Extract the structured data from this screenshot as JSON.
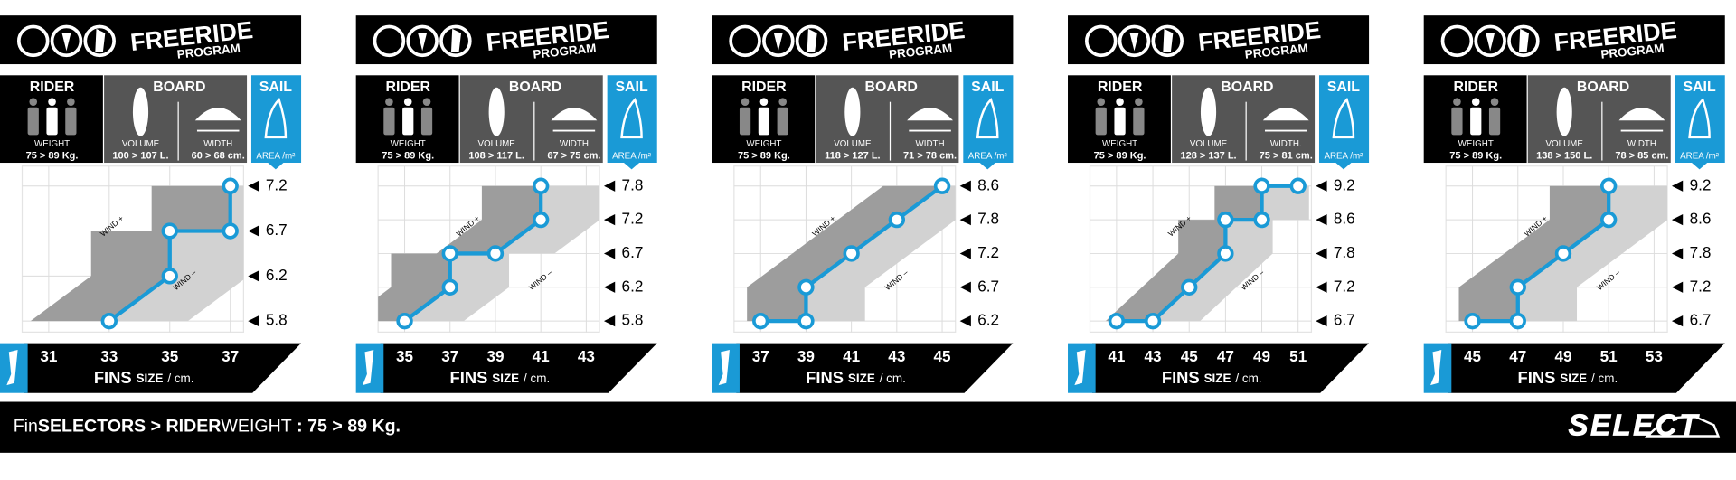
{
  "chart_data": [
    {
      "type": "line",
      "header": {
        "title": "FREERIDE",
        "subtitle": "PROGRAM"
      },
      "rider": {
        "label": "RIDER",
        "weight_label": "WEIGHT",
        "weight": "75 > 89 Kg."
      },
      "board": {
        "label": "BOARD",
        "volume_label": "VOLUME",
        "volume": "100 > 107 L.",
        "width_label": "WIDTH",
        "width": "60 > 68 cm."
      },
      "sail": {
        "label": "SAIL",
        "area_label": "AREA /m²"
      },
      "wind_plus": "WIND +",
      "wind_minus": "WIND –",
      "fins": {
        "label": "FINS",
        "size": "SIZE",
        "unit": "/ cm."
      },
      "x": [
        33,
        35,
        35,
        37,
        37
      ],
      "values": [
        5.8,
        6.2,
        6.7,
        6.7,
        7.2
      ],
      "color": "#1a9ad6",
      "xlim": [
        31,
        37
      ],
      "xticks": [
        31,
        33,
        35,
        37
      ],
      "yticks": [
        5.8,
        6.2,
        6.7,
        7.2
      ],
      "grid": true
    },
    {
      "type": "line",
      "header": {
        "title": "FREERIDE",
        "subtitle": "PROGRAM"
      },
      "rider": {
        "label": "RIDER",
        "weight_label": "WEIGHT",
        "weight": "75 > 89 Kg."
      },
      "board": {
        "label": "BOARD",
        "volume_label": "VOLUME",
        "volume": "108 > 117 L.",
        "width_label": "WIDTH",
        "width": "67 > 75 cm."
      },
      "sail": {
        "label": "SAIL",
        "area_label": "AREA /m²"
      },
      "wind_plus": "WIND +",
      "wind_minus": "WIND –",
      "fins": {
        "label": "FINS",
        "size": "SIZE",
        "unit": "/ cm."
      },
      "x": [
        35,
        37,
        37,
        39,
        41,
        41
      ],
      "values": [
        5.8,
        6.2,
        6.7,
        6.7,
        7.2,
        7.8
      ],
      "color": "#1a9ad6",
      "xlim": [
        35,
        43
      ],
      "xticks": [
        35,
        37,
        39,
        41,
        43
      ],
      "yticks": [
        5.8,
        6.2,
        6.7,
        7.2,
        7.8
      ],
      "grid": true
    },
    {
      "type": "line",
      "header": {
        "title": "FREERIDE",
        "subtitle": "PROGRAM"
      },
      "rider": {
        "label": "RIDER",
        "weight_label": "WEIGHT",
        "weight": "75 > 89 Kg."
      },
      "board": {
        "label": "BOARD",
        "volume_label": "VOLUME",
        "volume": "118 > 127 L.",
        "width_label": "WIDTH",
        "width": "71 > 78 cm."
      },
      "sail": {
        "label": "SAIL",
        "area_label": "AREA /m²"
      },
      "wind_plus": "WIND +",
      "wind_minus": "WIND –",
      "fins": {
        "label": "FINS",
        "size": "SIZE",
        "unit": "/ cm."
      },
      "x": [
        37,
        39,
        39,
        41,
        43,
        45
      ],
      "values": [
        6.2,
        6.2,
        6.7,
        7.2,
        7.8,
        8.6
      ],
      "color": "#1a9ad6",
      "xlim": [
        37,
        45
      ],
      "xticks": [
        37,
        39,
        41,
        43,
        45
      ],
      "yticks": [
        6.2,
        6.7,
        7.2,
        7.8,
        8.6
      ],
      "grid": true
    },
    {
      "type": "line",
      "header": {
        "title": "FREERIDE",
        "subtitle": "PROGRAM"
      },
      "rider": {
        "label": "RIDER",
        "weight_label": "WEIGHT",
        "weight": "75 > 89 Kg."
      },
      "board": {
        "label": "BOARD",
        "volume_label": "VOLUME",
        "volume": "128 > 137 L.",
        "width_label": "WIDTH.",
        "width": "75 > 81 cm."
      },
      "sail": {
        "label": "SAIL",
        "area_label": "AREA /m²"
      },
      "wind_plus": "WIND +",
      "wind_minus": "WIND –",
      "fins": {
        "label": "FINS",
        "size": "SIZE",
        "unit": "/ cm."
      },
      "x": [
        41,
        43,
        45,
        47,
        47,
        49,
        49,
        51
      ],
      "values": [
        6.7,
        6.7,
        7.2,
        7.8,
        8.6,
        8.6,
        9.2,
        9.2
      ],
      "color": "#1a9ad6",
      "xlim": [
        41,
        51
      ],
      "xticks": [
        41,
        43,
        45,
        47,
        49,
        51
      ],
      "yticks": [
        6.7,
        7.2,
        7.8,
        8.6,
        9.2
      ],
      "grid": true
    },
    {
      "type": "line",
      "header": {
        "title": "FREERIDE",
        "subtitle": "PROGRAM"
      },
      "rider": {
        "label": "RIDER",
        "weight_label": "WEIGHT",
        "weight": "75 > 89 Kg."
      },
      "board": {
        "label": "BOARD",
        "volume_label": "VOLUME",
        "volume": "138 > 150 L.",
        "width_label": "WIDTH",
        "width": "78 > 85 cm."
      },
      "sail": {
        "label": "SAIL",
        "area_label": "AREA /m²"
      },
      "wind_plus": "WIND +",
      "wind_minus": "WIND –",
      "fins": {
        "label": "FINS",
        "size": "SIZE",
        "unit": "/ cm."
      },
      "x": [
        45,
        47,
        47,
        49,
        51,
        51
      ],
      "values": [
        6.7,
        6.7,
        7.2,
        7.8,
        8.6,
        9.2
      ],
      "color": "#1a9ad6",
      "xlim": [
        45,
        53
      ],
      "xticks": [
        45,
        47,
        49,
        51,
        53
      ],
      "yticks": [
        6.7,
        7.2,
        7.8,
        8.6,
        9.2
      ],
      "grid": true
    }
  ],
  "footer": {
    "parts": [
      {
        "text": "Fin",
        "bold": false
      },
      {
        "text": "SELECTORS > RIDER",
        "bold": true
      },
      {
        "text": "WEIGHT",
        "bold": false
      },
      {
        "text": " : 75 > 89 Kg.",
        "bold": true
      }
    ],
    "brand": "SELECT"
  }
}
